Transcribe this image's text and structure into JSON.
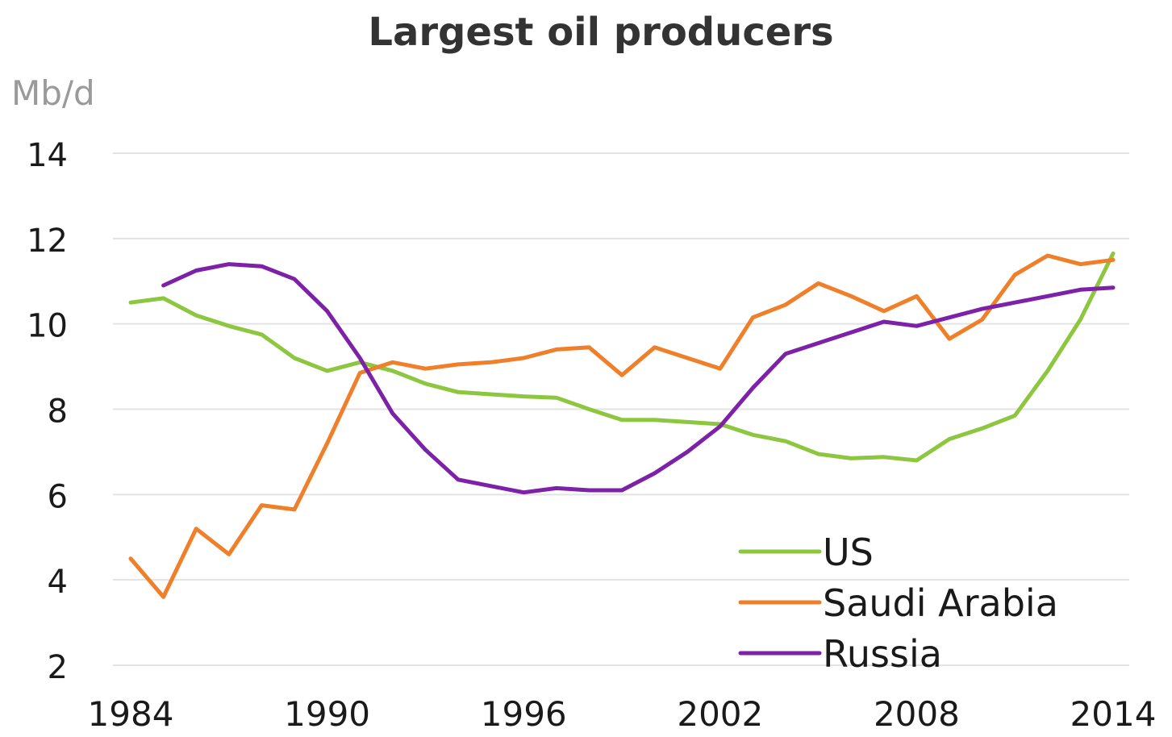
{
  "chart_data": {
    "type": "line",
    "title": "Largest oil producers",
    "ylabel": "Mb/d",
    "xlabel": "",
    "xlim": [
      1984,
      2014
    ],
    "ylim": [
      2,
      14
    ],
    "x_ticks": [
      1984,
      1990,
      1996,
      2002,
      2008,
      2014
    ],
    "y_ticks": [
      2,
      4,
      6,
      8,
      10,
      12,
      14
    ],
    "grid": "horizontal",
    "legend_position": "bottom-right",
    "series": [
      {
        "name": "US",
        "color": "#8dc63f",
        "points": [
          [
            1984,
            10.5
          ],
          [
            1985,
            10.6
          ],
          [
            1986,
            10.2
          ],
          [
            1987,
            9.95
          ],
          [
            1988,
            9.75
          ],
          [
            1989,
            9.2
          ],
          [
            1990,
            8.9
          ],
          [
            1991,
            9.1
          ],
          [
            1992,
            8.9
          ],
          [
            1993,
            8.6
          ],
          [
            1994,
            8.4
          ],
          [
            1995,
            8.35
          ],
          [
            1996,
            8.3
          ],
          [
            1997,
            8.27
          ],
          [
            1998,
            8.0
          ],
          [
            1999,
            7.75
          ],
          [
            2000,
            7.75
          ],
          [
            2001,
            7.7
          ],
          [
            2002,
            7.65
          ],
          [
            2003,
            7.4
          ],
          [
            2004,
            7.25
          ],
          [
            2005,
            6.95
          ],
          [
            2006,
            6.85
          ],
          [
            2007,
            6.88
          ],
          [
            2008,
            6.8
          ],
          [
            2009,
            7.3
          ],
          [
            2010,
            7.55
          ],
          [
            2011,
            7.85
          ],
          [
            2012,
            8.9
          ],
          [
            2013,
            10.1
          ],
          [
            2014,
            11.65
          ]
        ]
      },
      {
        "name": "Saudi Arabia",
        "color": "#f07f2a",
        "points": [
          [
            1984,
            4.5
          ],
          [
            1985,
            3.6
          ],
          [
            1986,
            5.2
          ],
          [
            1987,
            4.6
          ],
          [
            1988,
            5.75
          ],
          [
            1989,
            5.65
          ],
          [
            1990,
            7.2
          ],
          [
            1991,
            8.85
          ],
          [
            1992,
            9.1
          ],
          [
            1993,
            8.95
          ],
          [
            1994,
            9.05
          ],
          [
            1995,
            9.1
          ],
          [
            1996,
            9.2
          ],
          [
            1997,
            9.4
          ],
          [
            1998,
            9.45
          ],
          [
            1999,
            8.8
          ],
          [
            2000,
            9.45
          ],
          [
            2001,
            9.2
          ],
          [
            2002,
            8.95
          ],
          [
            2003,
            10.15
          ],
          [
            2004,
            10.45
          ],
          [
            2005,
            10.95
          ],
          [
            2006,
            10.65
          ],
          [
            2007,
            10.3
          ],
          [
            2008,
            10.65
          ],
          [
            2009,
            9.65
          ],
          [
            2010,
            10.1
          ],
          [
            2011,
            11.15
          ],
          [
            2012,
            11.6
          ],
          [
            2013,
            11.4
          ],
          [
            2014,
            11.5
          ]
        ]
      },
      {
        "name": "Russia",
        "color": "#7d22a8",
        "points": [
          [
            1985,
            10.9
          ],
          [
            1986,
            11.25
          ],
          [
            1987,
            11.4
          ],
          [
            1988,
            11.35
          ],
          [
            1989,
            11.05
          ],
          [
            1990,
            10.3
          ],
          [
            1991,
            9.2
          ],
          [
            1992,
            7.9
          ],
          [
            1993,
            7.05
          ],
          [
            1994,
            6.35
          ],
          [
            1995,
            6.2
          ],
          [
            1996,
            6.05
          ],
          [
            1997,
            6.15
          ],
          [
            1998,
            6.1
          ],
          [
            1999,
            6.1
          ],
          [
            2000,
            6.5
          ],
          [
            2001,
            7.0
          ],
          [
            2002,
            7.6
          ],
          [
            2003,
            8.5
          ],
          [
            2004,
            9.3
          ],
          [
            2005,
            9.55
          ],
          [
            2006,
            9.8
          ],
          [
            2007,
            10.05
          ],
          [
            2008,
            9.95
          ],
          [
            2009,
            10.15
          ],
          [
            2010,
            10.35
          ],
          [
            2011,
            10.5
          ],
          [
            2012,
            10.65
          ],
          [
            2013,
            10.8
          ],
          [
            2014,
            10.85
          ]
        ]
      }
    ]
  }
}
